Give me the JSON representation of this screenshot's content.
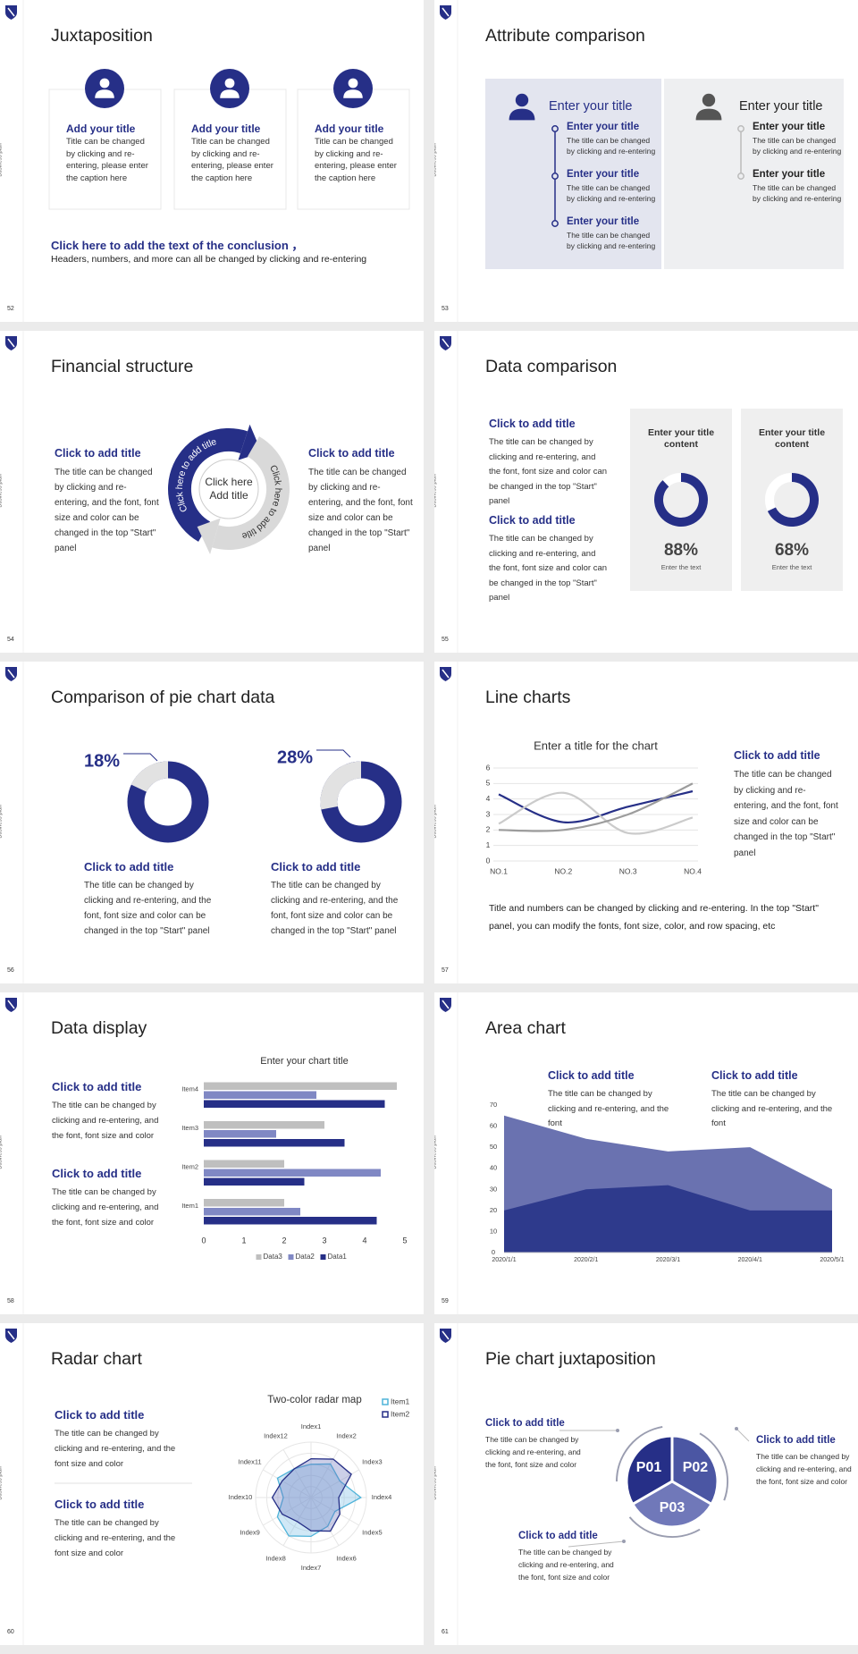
{
  "side_label": "Business plan",
  "slides": [
    {
      "number": "52",
      "title": "Juxtaposition",
      "cards": [
        {
          "title": "Add your title",
          "text": "Title can be changed by clicking and re-entering, please enter the caption here"
        },
        {
          "title": "Add your title",
          "text": "Title can be changed by clicking and re-entering, please enter the caption here"
        },
        {
          "title": "Add your title",
          "text": "Title can be changed by clicking and re-entering, please enter the caption here"
        }
      ],
      "conclusion_title": "Click here to add the text of the conclusion ，",
      "conclusion_text": "Headers, numbers, and more can all be changed by clicking and re-entering"
    },
    {
      "number": "53",
      "title": "Attribute comparison",
      "panels": [
        {
          "heading": "Enter your title",
          "items": [
            {
              "title": "Enter your title",
              "text": "The title can be changed by clicking and re-entering"
            },
            {
              "title": "Enter your title",
              "text": "The title can be changed by clicking and re-entering"
            },
            {
              "title": "Enter your title",
              "text": "The title can be changed by clicking and re-entering"
            }
          ]
        },
        {
          "heading": "Enter your title",
          "items": [
            {
              "title": "Enter your title",
              "text": "The title can be changed by clicking and re-entering"
            },
            {
              "title": "Enter your title",
              "text": "The title can be changed by clicking and re-entering"
            }
          ]
        }
      ]
    },
    {
      "number": "54",
      "title": "Financial structure",
      "blocks": [
        {
          "title": "Click to add title",
          "text": "The title can be changed by clicking and re-entering, and the font, font size and color can be changed in the top \"Start\" panel"
        },
        {
          "title": "Click to add title",
          "text": "The title can be changed by clicking and re-entering, and the font, font size and color can be changed in the top \"Start\" panel"
        }
      ],
      "center_lines": [
        "Click here",
        "Add title"
      ],
      "arc_labels": [
        "Click here to add title",
        "Click here to add title"
      ]
    },
    {
      "number": "55",
      "title": "Data comparison",
      "blocks": [
        {
          "title": "Click to add title",
          "text": "The title can be changed by clicking and re-entering, and the font, font size and color can be changed in the top \"Start\" panel"
        },
        {
          "title": "Click to add title",
          "text": "The title can be changed by clicking and re-entering, and the font, font size and color can be changed in the top \"Start\" panel"
        }
      ],
      "cards": [
        {
          "title": "Enter your title content",
          "chart_data": {
            "type": "donut",
            "values": [
              88
            ],
            "value_labels": [
              "88%"
            ],
            "color": "#262f87"
          },
          "caption": "Enter the text"
        },
        {
          "title": "Enter your title content",
          "chart_data": {
            "type": "donut",
            "values": [
              68
            ],
            "value_labels": [
              "68%"
            ],
            "color": "#262f87"
          },
          "caption": "Enter the text"
        }
      ]
    },
    {
      "number": "56",
      "title": "Comparison of pie chart data",
      "charts": [
        {
          "chart_data": {
            "type": "donut",
            "values": [
              18
            ],
            "value_labels": [
              "18%"
            ],
            "color": "#e2e2e2",
            "track_color": "#262f87"
          },
          "title": "Click to add title",
          "text": "The title can be changed by clicking and re-entering, and the font, font size and color can be changed in the top \"Start\" panel"
        },
        {
          "chart_data": {
            "type": "donut",
            "values": [
              28
            ],
            "value_labels": [
              "28%"
            ],
            "color": "#e2e2e2",
            "track_color": "#262f87"
          },
          "title": "Click to add title",
          "text": "The title can be changed by clicking and re-entering, and the font, font size and color can be changed in the top \"Start\" panel"
        }
      ]
    },
    {
      "number": "57",
      "title": "Line charts",
      "chart_data": {
        "type": "line",
        "title": "Enter a title for the chart",
        "categories": [
          "NO.1",
          "NO.2",
          "NO.3",
          "NO.4"
        ],
        "series": [
          {
            "color": "#262f87",
            "values": [
              4.3,
              2.5,
              3.5,
              4.5
            ]
          },
          {
            "color": "#cbcbcb",
            "values": [
              2.4,
              4.4,
              1.8,
              2.8
            ]
          },
          {
            "color": "#9c9c9c",
            "values": [
              2,
              2,
              3,
              5
            ]
          }
        ],
        "ylim": [
          0,
          6
        ],
        "yticks": [
          0,
          1,
          2,
          3,
          4,
          5,
          6
        ],
        "grid": true,
        "smooth": true
      },
      "block": {
        "title": "Click to add title",
        "text": "The title can be changed by clicking and re-entering, and the font, font size and color can be changed in the top \"Start\" panel"
      },
      "note": "Title and numbers can be changed by clicking and re-entering. In the top \"Start\" panel, you can modify the fonts, font size, color, and row spacing, etc"
    },
    {
      "number": "58",
      "title": "Data display",
      "blocks": [
        {
          "title": "Click to add title",
          "text": "The title can be changed by clicking and re-entering, and the font, font size and color"
        },
        {
          "title": "Click to add title",
          "text": "The title can be changed by clicking and re-entering, and the font, font size and color"
        }
      ],
      "chart_data": {
        "type": "hbar",
        "title": "Enter your chart title",
        "categories": [
          "Item1",
          "Item2",
          "Item3",
          "Item4"
        ],
        "series": [
          {
            "name": "Data1",
            "color": "#262f87",
            "values": [
              4.3,
              2.5,
              3.5,
              4.5
            ]
          },
          {
            "name": "Data2",
            "color": "#8088c4",
            "values": [
              2.4,
              4.4,
              1.8,
              2.8
            ]
          },
          {
            "name": "Data3",
            "color": "#bfbfbf",
            "values": [
              2,
              2,
              3,
              4.8
            ]
          }
        ],
        "xlim": [
          0,
          5
        ],
        "xticks": [
          0,
          1,
          2,
          3,
          4,
          5
        ],
        "legend": "bottom"
      }
    },
    {
      "number": "59",
      "title": "Area chart",
      "blocks": [
        {
          "title": "Click to add title",
          "text": "The title can be changed by clicking and re-entering, and the font"
        },
        {
          "title": "Click to add title",
          "text": "The title can be changed by clicking and re-entering, and the font"
        }
      ],
      "chart_data": {
        "type": "area",
        "categories": [
          "2020/1/1",
          "2020/2/1",
          "2020/3/1",
          "2020/4/1",
          "2020/5/1"
        ],
        "series": [
          {
            "color": "#6a72b0",
            "values": [
              65,
              54,
              48,
              50,
              30
            ]
          },
          {
            "color": "#2e3a8c",
            "values": [
              20,
              30,
              32,
              20,
              20
            ]
          }
        ],
        "ylim": [
          0,
          70
        ],
        "yticks": [
          0,
          10,
          20,
          30,
          40,
          50,
          60,
          70
        ]
      }
    },
    {
      "number": "60",
      "title": "Radar chart",
      "blocks": [
        {
          "title": "Click to add title",
          "text": "The title can be changed by clicking and re-entering, and the font size and color"
        },
        {
          "title": "Click to add title",
          "text": "The title can be changed by clicking and re-entering, and the font size and color"
        }
      ],
      "chart_data": {
        "type": "radar",
        "title": "Two-color radar map",
        "categories": [
          "Index1",
          "Index2",
          "Index3",
          "Index4",
          "Index5",
          "Index6",
          "Index7",
          "Index8",
          "Index9",
          "Index10",
          "Index11",
          "Index12"
        ],
        "series": [
          {
            "name": "Item1",
            "color": "#4fb3d9",
            "values": [
              3,
              3.5,
              3,
              4.5,
              2.5,
              3,
              3.5,
              4,
              3.5,
              2.5,
              3.5,
              3
            ]
          },
          {
            "name": "Item2",
            "color": "#262f87",
            "values": [
              3.5,
              4,
              4.2,
              2.5,
              3,
              3.5,
              3,
              2.5,
              3,
              3.5,
              3,
              3
            ]
          }
        ],
        "ylim": [
          0,
          5
        ],
        "legend": "top-right"
      }
    },
    {
      "number": "61",
      "title": "Pie chart juxtaposition",
      "segments": [
        "P01",
        "P02",
        "P03"
      ],
      "blocks": [
        {
          "title": "Click to add title",
          "text": "The title can be changed by clicking and re-entering, and the font, font size and color"
        },
        {
          "title": "Click to add title",
          "text": "The title can be changed by clicking and re-entering, and the font, font size and color"
        },
        {
          "title": "Click to add title",
          "text": "The title can be changed by clicking and re-entering, and the font, font size and color"
        }
      ]
    }
  ]
}
